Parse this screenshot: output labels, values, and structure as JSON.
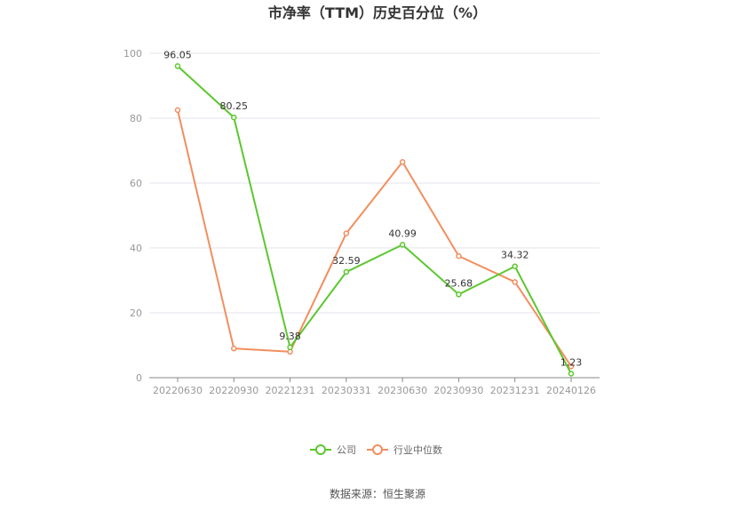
{
  "chart_data": {
    "type": "line",
    "title": "市净率（TTM）历史百分位（%）",
    "categories": [
      "20220630",
      "20220930",
      "20221231",
      "20230331",
      "20230630",
      "20230930",
      "20231231",
      "20240126"
    ],
    "ylim": [
      0,
      100
    ],
    "yticks": [
      0,
      20,
      40,
      60,
      80,
      100
    ],
    "grid": true,
    "legend_position": "bottom",
    "series": [
      {
        "name": "公司",
        "color": "#5cc72f",
        "values": [
          96.05,
          80.25,
          9.38,
          32.59,
          40.99,
          25.68,
          34.32,
          1.23
        ],
        "labels": [
          "96.05",
          "80.25",
          "9.38",
          "32.59",
          "40.99",
          "25.68",
          "34.32",
          "1.23"
        ]
      },
      {
        "name": "行业中位数",
        "color": "#f28e5f",
        "values": [
          82.5,
          9.0,
          8.0,
          44.5,
          66.5,
          37.5,
          29.5,
          3.5
        ]
      }
    ]
  },
  "source": "数据来源：恒生聚源"
}
